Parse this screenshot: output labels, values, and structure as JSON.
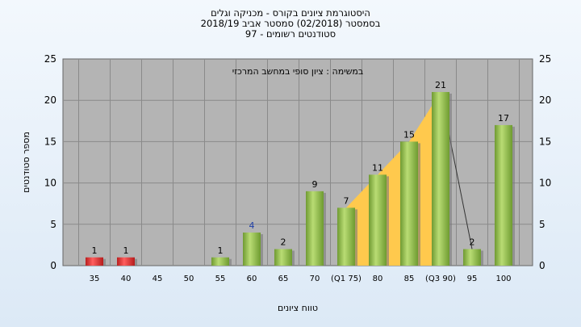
{
  "title": {
    "line1": "היסטוגרמת ציונים בקורס - מכניקה וגלים",
    "line2": "בסמסטר  (02/2018)  סמסטר אביב 2018/19",
    "line3": "סטודנטים רשומים - 97"
  },
  "chart_data": {
    "type": "bar",
    "subtitle": "במשימה : ציון סופי במחשב המרכזי",
    "xlabel": "טווח ציונים",
    "ylabel": "מספר סטודנטים",
    "ylim": [
      0,
      25
    ],
    "yticks": [
      0,
      5,
      10,
      15,
      20,
      25
    ],
    "grid": true,
    "categories": [
      "35",
      "40",
      "45",
      "50",
      "55",
      "60",
      "65",
      "70",
      "(Q1 75)",
      "80",
      "85",
      "(Q3 90)",
      "95",
      "100"
    ],
    "values": [
      1,
      1,
      0,
      0,
      1,
      4,
      2,
      9,
      7,
      11,
      15,
      21,
      2,
      17
    ],
    "data_labels": [
      "1",
      "1",
      "",
      "",
      "1",
      "4",
      "2",
      "9",
      "7",
      "11",
      "15",
      "21",
      "2",
      "17"
    ],
    "interquartile_range": [
      "(Q1 75)",
      "(Q3 90)"
    ],
    "colors": {
      "plot_background": "#b4b4b4",
      "failing_bar": "#e53b3b",
      "passing_bar": "#92c24a",
      "quartile_band": "#ffc94d",
      "blue_label": "#1f3fa8"
    },
    "bar_colors": [
      "failing",
      "failing",
      "passing",
      "passing",
      "passing",
      "passing",
      "passing",
      "passing",
      "passing",
      "passing",
      "passing",
      "passing",
      "passing",
      "passing"
    ],
    "label_colors": [
      "black",
      "black",
      "black",
      "black",
      "black",
      "blue",
      "black",
      "black",
      "black",
      "black",
      "black",
      "black",
      "black",
      "black"
    ]
  }
}
